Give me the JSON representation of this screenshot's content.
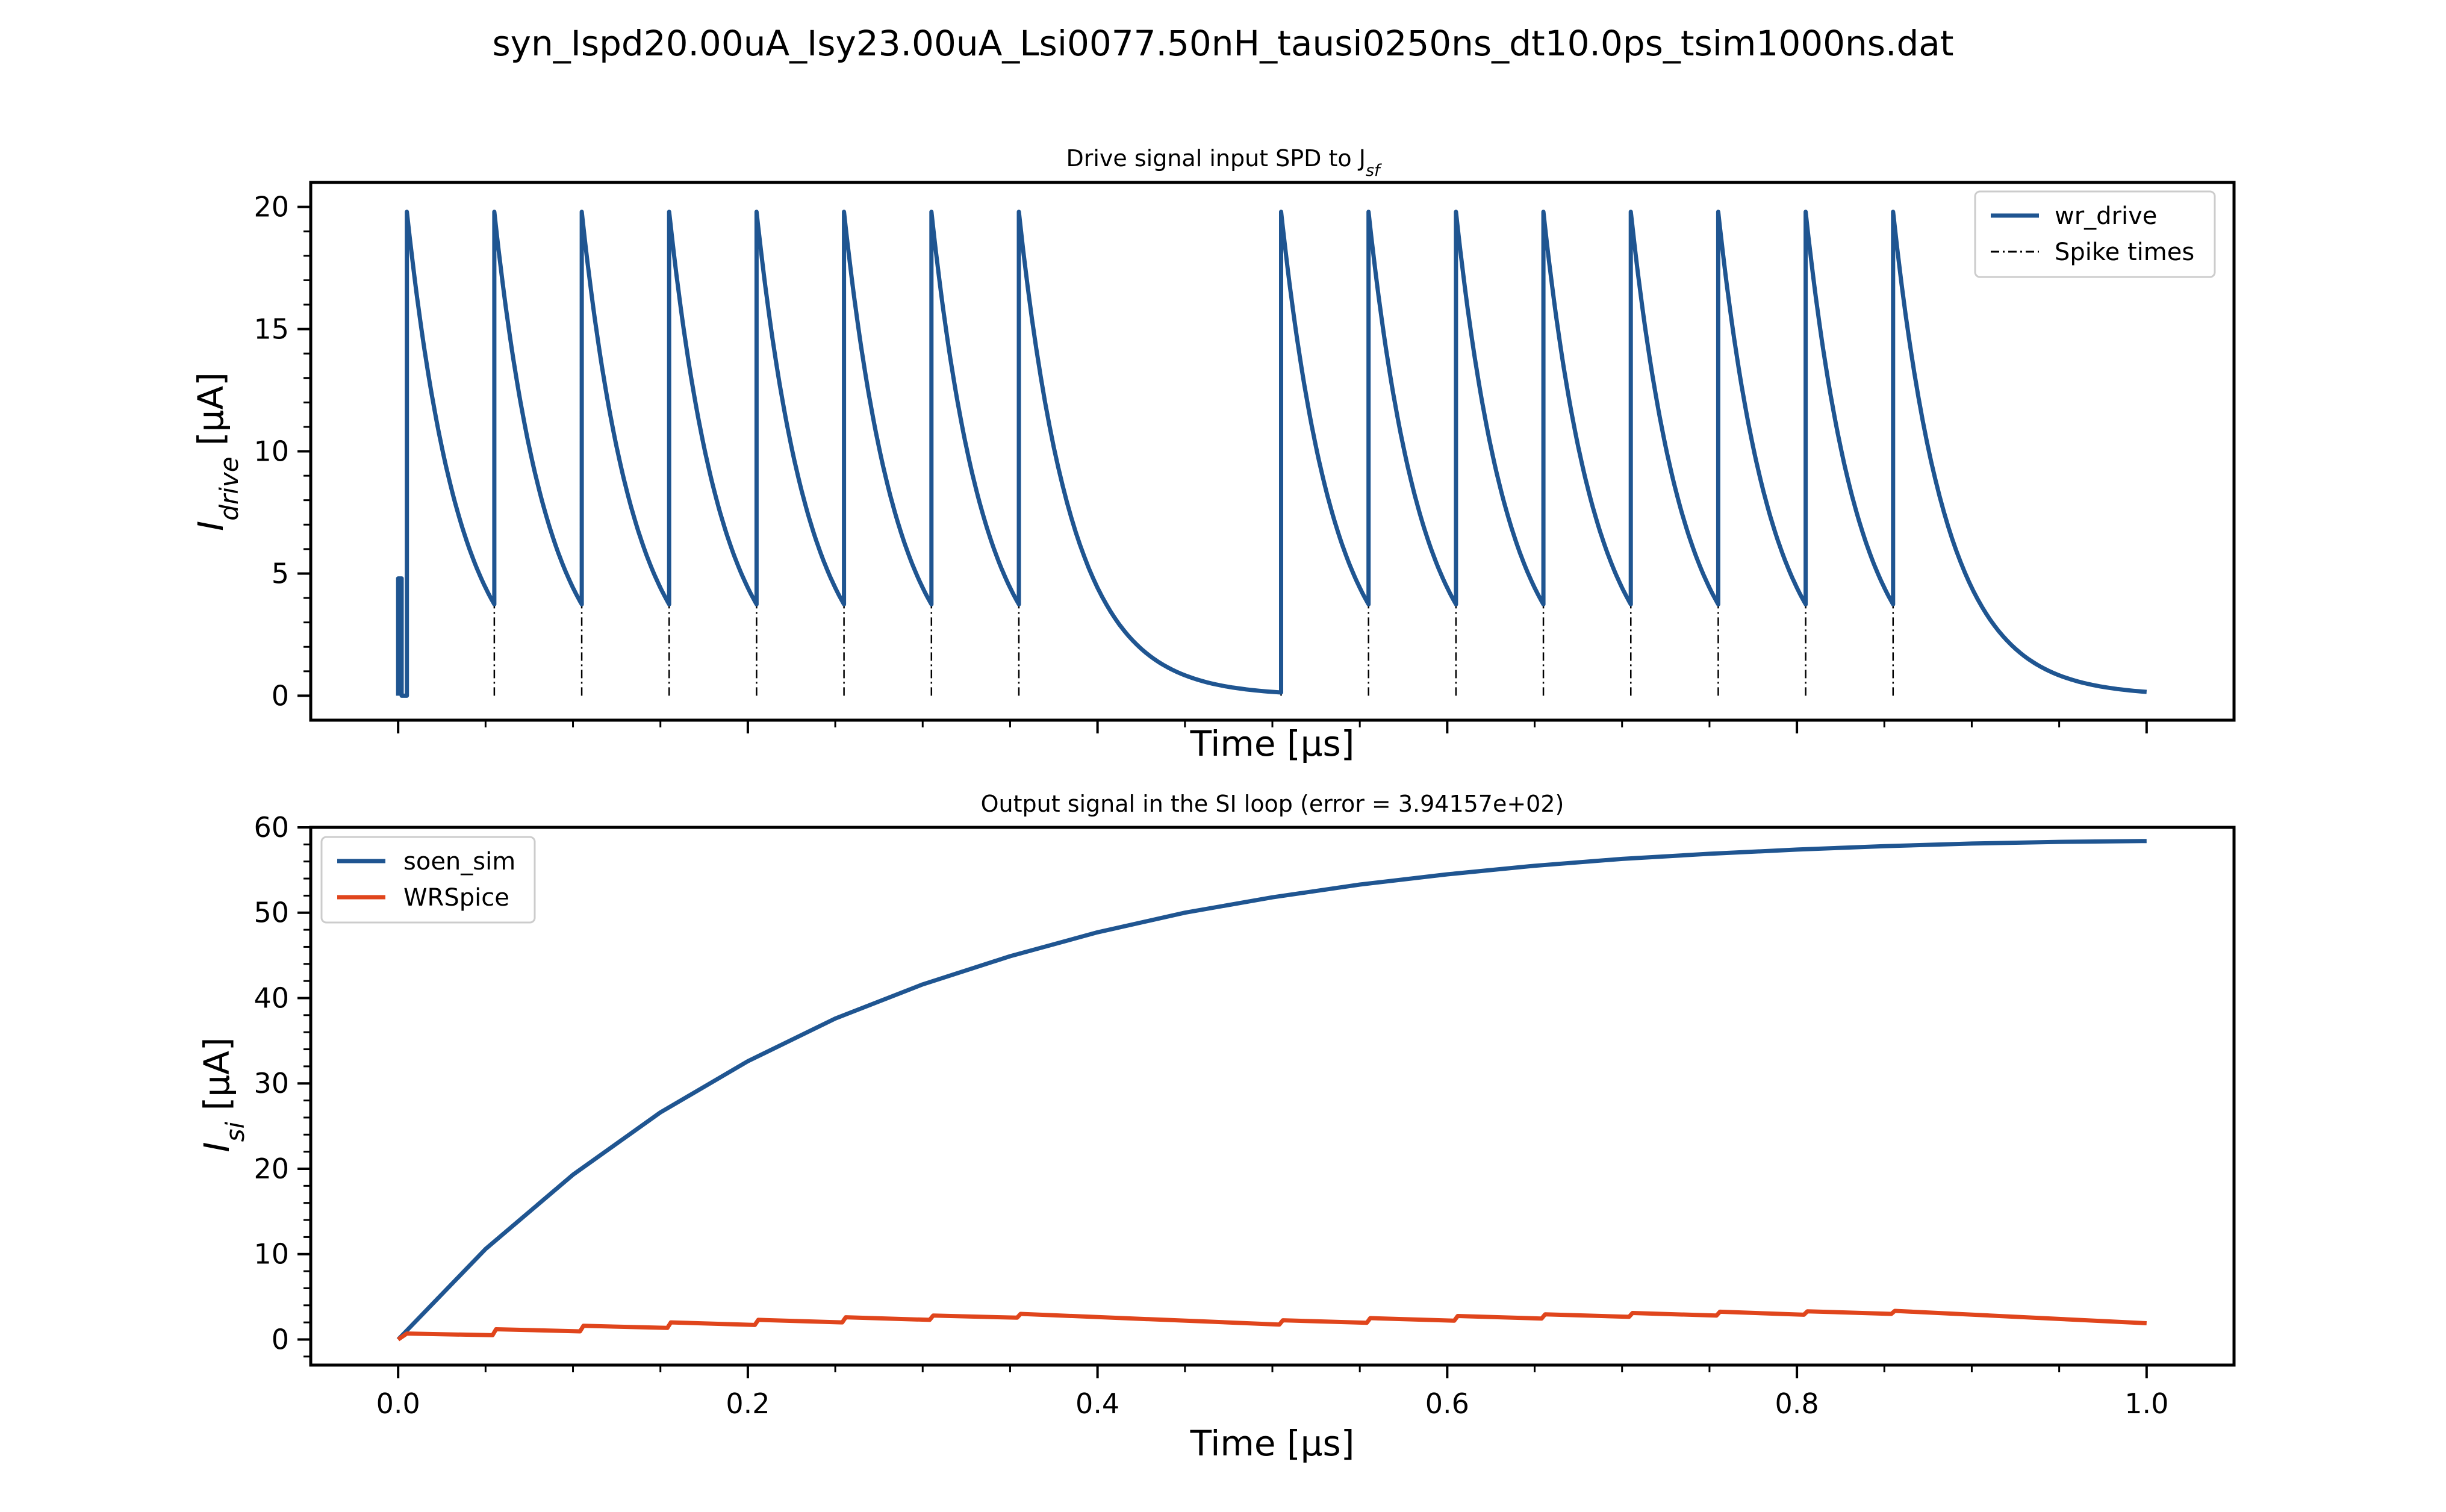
{
  "figure": {
    "suptitle": "syn_Ispd20.00uA_Isy23.00uA_Lsi0077.50nH_tausi0250ns_dt10.0ps_tsim1000ns.dat"
  },
  "colors": {
    "blue": "#1f5591",
    "orange": "#e0451c",
    "spike": "#000000"
  },
  "chart_data": [
    {
      "type": "line",
      "title": "Drive signal input SPD to J",
      "title_sub": "sf",
      "xlabel": "Time [μs]",
      "ylabel_main": "I",
      "ylabel_sub": "drive",
      "ylabel_unit": " [μA]",
      "xlim": [
        -0.05,
        1.05
      ],
      "ylim": [
        -1,
        21
      ],
      "xticks": [
        0.0,
        0.2,
        0.4,
        0.6,
        0.8,
        1.0
      ],
      "xtick_labels_visible": false,
      "yticks": [
        0,
        5,
        10,
        15,
        20
      ],
      "ytick_labels": [
        "0",
        "5",
        "10",
        "15",
        "20"
      ],
      "legend_position": "upper-right",
      "spike_times": [
        0.005,
        0.055,
        0.105,
        0.155,
        0.205,
        0.255,
        0.305,
        0.355,
        0.505,
        0.555,
        0.605,
        0.655,
        0.705,
        0.755,
        0.805,
        0.855
      ],
      "drive_model": {
        "peak": 19.8,
        "tau_us": 0.03,
        "prespike_level": 4.8,
        "prespike_end": 0.002
      },
      "series": [
        {
          "name": "wr_drive",
          "color": "#1f5591",
          "style": "solid"
        },
        {
          "name": "Spike times",
          "color": "#000000",
          "style": "dashdot"
        }
      ]
    },
    {
      "type": "line",
      "title": "Output signal in the SI loop (error = 3.94157e+02)",
      "xlabel": "Time [μs]",
      "ylabel_main": "I",
      "ylabel_sub": "si",
      "ylabel_unit": " [μA]",
      "xlim": [
        -0.05,
        1.05
      ],
      "ylim": [
        -3,
        60
      ],
      "xticks": [
        0.0,
        0.2,
        0.4,
        0.6,
        0.8,
        1.0
      ],
      "xtick_labels": [
        "0.0",
        "0.2",
        "0.4",
        "0.6",
        "0.8",
        "1.0"
      ],
      "yticks": [
        0,
        10,
        20,
        30,
        40,
        50,
        60
      ],
      "ytick_labels": [
        "0",
        "10",
        "20",
        "30",
        "40",
        "50",
        "60"
      ],
      "legend_position": "upper-left",
      "series": [
        {
          "name": "soen_sim",
          "color": "#1f5591",
          "x": [
            0.0,
            0.05,
            0.1,
            0.15,
            0.2,
            0.25,
            0.3,
            0.35,
            0.4,
            0.45,
            0.5,
            0.55,
            0.6,
            0.65,
            0.7,
            0.75,
            0.8,
            0.85,
            0.9,
            0.95,
            1.0
          ],
          "y": [
            0.0,
            10.6,
            19.3,
            26.6,
            32.6,
            37.6,
            41.6,
            44.9,
            47.7,
            50.0,
            51.8,
            53.3,
            54.5,
            55.5,
            56.3,
            56.9,
            57.4,
            57.8,
            58.1,
            58.3,
            58.4
          ]
        },
        {
          "name": "WRSpice",
          "color": "#e0451c",
          "x": [
            0.0,
            0.005,
            0.054,
            0.056,
            0.104,
            0.106,
            0.154,
            0.156,
            0.204,
            0.206,
            0.254,
            0.256,
            0.304,
            0.306,
            0.354,
            0.356,
            0.504,
            0.506,
            0.554,
            0.556,
            0.604,
            0.606,
            0.654,
            0.656,
            0.704,
            0.706,
            0.754,
            0.756,
            0.804,
            0.806,
            0.854,
            0.856,
            1.0
          ],
          "y": [
            0.0,
            0.7,
            0.5,
            1.2,
            0.95,
            1.6,
            1.35,
            2.0,
            1.7,
            2.3,
            2.0,
            2.6,
            2.3,
            2.8,
            2.55,
            3.0,
            1.75,
            2.25,
            1.95,
            2.5,
            2.2,
            2.75,
            2.45,
            2.95,
            2.65,
            3.1,
            2.8,
            3.25,
            2.9,
            3.3,
            3.0,
            3.35,
            1.9
          ]
        }
      ]
    }
  ]
}
